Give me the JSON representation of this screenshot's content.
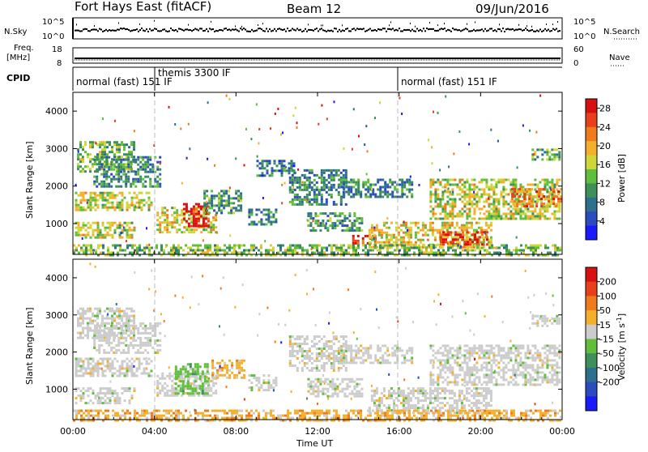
{
  "header": {
    "title": "Fort Hays East (fitACF)",
    "beam": "Beam 12",
    "date": "09/Jun/2016"
  },
  "top_panels": {
    "nsky_label": "N.Sky",
    "nsky_ticks": [
      "10^5",
      "10^0"
    ],
    "nsearch_label": "N.Search",
    "nsearch_ticks": [
      "10^5",
      "10^0"
    ],
    "freq_label_1": "Freq.",
    "freq_label_2": "[MHz]",
    "freq_ticks": [
      "18",
      "8"
    ],
    "nave_label": "Nave",
    "nave_ticks": [
      "60",
      "0"
    ],
    "cpid_label": "CPID",
    "cpid_modes": [
      {
        "label": "normal (fast) 151 IF",
        "start_hour": 0,
        "end_hour": 4
      },
      {
        "label": "themis 3300 IF",
        "start_hour": 4,
        "end_hour": 16
      },
      {
        "label": "normal (fast) 151 IF",
        "start_hour": 16,
        "end_hour": 24
      }
    ]
  },
  "chart_data": [
    {
      "type": "heatmap",
      "name": "power",
      "ylabel": "Slant Range [km]",
      "xlabel": "Time UT",
      "x_range_hours": [
        0,
        24
      ],
      "ylim": [
        180,
        4500
      ],
      "yticks": [
        "1000",
        "2000",
        "3000",
        "4000"
      ],
      "xticks": [
        "00:00",
        "04:00",
        "08:00",
        "12:00",
        "16:00",
        "20:00",
        "00:00"
      ],
      "colorbar": {
        "label": "Power [dB]",
        "ticks": [
          "4",
          "8",
          "12",
          "16",
          "20",
          "24",
          "28"
        ],
        "range": [
          0,
          30
        ],
        "colors": [
          "#1a1aff",
          "#2a4cbf",
          "#2e6f8e",
          "#3f8f5a",
          "#5fbf3a",
          "#cfd63a",
          "#f4b02a",
          "#f07a1e",
          "#e8401a",
          "#d81010"
        ]
      },
      "echo_regions": [
        {
          "t0": 0.1,
          "t1": 3.8,
          "r0": 1350,
          "r1": 1850,
          "level": 0.55
        },
        {
          "t0": 0.1,
          "t1": 3.0,
          "r0": 600,
          "r1": 1050,
          "level": 0.55
        },
        {
          "t0": 0.2,
          "t1": 3.0,
          "r0": 2400,
          "r1": 3200,
          "level": 0.45
        },
        {
          "t0": 1.0,
          "t1": 4.3,
          "r0": 2000,
          "r1": 2800,
          "level": 0.3
        },
        {
          "t0": 4.1,
          "t1": 7.0,
          "r0": 800,
          "r1": 1450,
          "level": 0.55
        },
        {
          "t0": 5.4,
          "t1": 6.6,
          "r0": 950,
          "r1": 1550,
          "level": 0.95
        },
        {
          "t0": 6.4,
          "t1": 8.2,
          "r0": 1300,
          "r1": 1900,
          "level": 0.35
        },
        {
          "t0": 8.6,
          "t1": 10.0,
          "r0": 1000,
          "r1": 1400,
          "level": 0.3
        },
        {
          "t0": 9.0,
          "t1": 10.8,
          "r0": 2300,
          "r1": 2700,
          "level": 0.25
        },
        {
          "t0": 10.6,
          "t1": 13.4,
          "r0": 1500,
          "r1": 2450,
          "level": 0.3
        },
        {
          "t0": 13.0,
          "t1": 16.6,
          "r0": 1700,
          "r1": 2200,
          "level": 0.3
        },
        {
          "t0": 11.5,
          "t1": 14.2,
          "r0": 800,
          "r1": 1300,
          "level": 0.35
        },
        {
          "t0": 13.7,
          "t1": 14.8,
          "r0": 450,
          "r1": 700,
          "level": 0.9
        },
        {
          "t0": 14.5,
          "t1": 20.5,
          "r0": 350,
          "r1": 1050,
          "level": 0.6
        },
        {
          "t0": 18.0,
          "t1": 20.3,
          "r0": 450,
          "r1": 800,
          "level": 0.9
        },
        {
          "t0": 17.5,
          "t1": 23.9,
          "r0": 1150,
          "r1": 2200,
          "level": 0.55
        },
        {
          "t0": 21.5,
          "t1": 23.9,
          "r0": 1450,
          "r1": 1950,
          "level": 0.75
        },
        {
          "t0": 22.5,
          "t1": 23.9,
          "r0": 2700,
          "r1": 3000,
          "level": 0.4
        },
        {
          "t0": 0.0,
          "t1": 23.9,
          "r0": 180,
          "r1": 450,
          "level": 0.45
        }
      ]
    },
    {
      "type": "heatmap",
      "name": "velocity",
      "ylabel": "Slant Range [km]",
      "xlabel": "Time UT",
      "x_range_hours": [
        0,
        24
      ],
      "ylim": [
        180,
        4500
      ],
      "yticks": [
        "1000",
        "2000",
        "3000",
        "4000"
      ],
      "xticks": [
        "00:00",
        "04:00",
        "08:00",
        "12:00",
        "16:00",
        "20:00",
        "00:00"
      ],
      "colorbar": {
        "label": "Velocity [m s-1]",
        "label_main": "Velocity [m s",
        "label_sup": "-1",
        "label_end": "]",
        "ticks": [
          "200",
          "100",
          "50",
          "15",
          "-15",
          "-50",
          "-100",
          "-200"
        ],
        "colors": [
          "#1a1aff",
          "#2a4cbf",
          "#2e6f8e",
          "#3f8f5a",
          "#5fbf3a",
          "#cccccc",
          "#f4b02a",
          "#f07a1e",
          "#e8401a",
          "#d81010"
        ]
      },
      "echo_regions": [
        {
          "t0": 0.1,
          "t1": 3.8,
          "r0": 1350,
          "r1": 1850,
          "kind": "gray"
        },
        {
          "t0": 0.1,
          "t1": 3.0,
          "r0": 600,
          "r1": 1050,
          "kind": "gray"
        },
        {
          "t0": 0.2,
          "t1": 3.0,
          "r0": 2400,
          "r1": 3200,
          "kind": "gray"
        },
        {
          "t0": 1.0,
          "t1": 4.3,
          "r0": 2000,
          "r1": 2800,
          "kind": "gray"
        },
        {
          "t0": 4.1,
          "t1": 7.0,
          "r0": 800,
          "r1": 1450,
          "kind": "gray"
        },
        {
          "t0": 5.0,
          "t1": 6.6,
          "r0": 850,
          "r1": 1700,
          "kind": "green"
        },
        {
          "t0": 6.8,
          "t1": 8.4,
          "r0": 1300,
          "r1": 1800,
          "kind": "orange"
        },
        {
          "t0": 8.6,
          "t1": 10.0,
          "r0": 1000,
          "r1": 1400,
          "kind": "gray"
        },
        {
          "t0": 10.6,
          "t1": 13.4,
          "r0": 1500,
          "r1": 2450,
          "kind": "gray"
        },
        {
          "t0": 13.0,
          "t1": 16.6,
          "r0": 1700,
          "r1": 2200,
          "kind": "gray"
        },
        {
          "t0": 11.5,
          "t1": 14.2,
          "r0": 800,
          "r1": 1300,
          "kind": "gray"
        },
        {
          "t0": 14.5,
          "t1": 20.5,
          "r0": 350,
          "r1": 1050,
          "kind": "gray"
        },
        {
          "t0": 17.5,
          "t1": 23.9,
          "r0": 1150,
          "r1": 2200,
          "kind": "gray"
        },
        {
          "t0": 22.5,
          "t1": 23.9,
          "r0": 2700,
          "r1": 3000,
          "kind": "gray"
        },
        {
          "t0": 0.0,
          "t1": 23.9,
          "r0": 180,
          "r1": 450,
          "kind": "orange"
        }
      ]
    }
  ]
}
